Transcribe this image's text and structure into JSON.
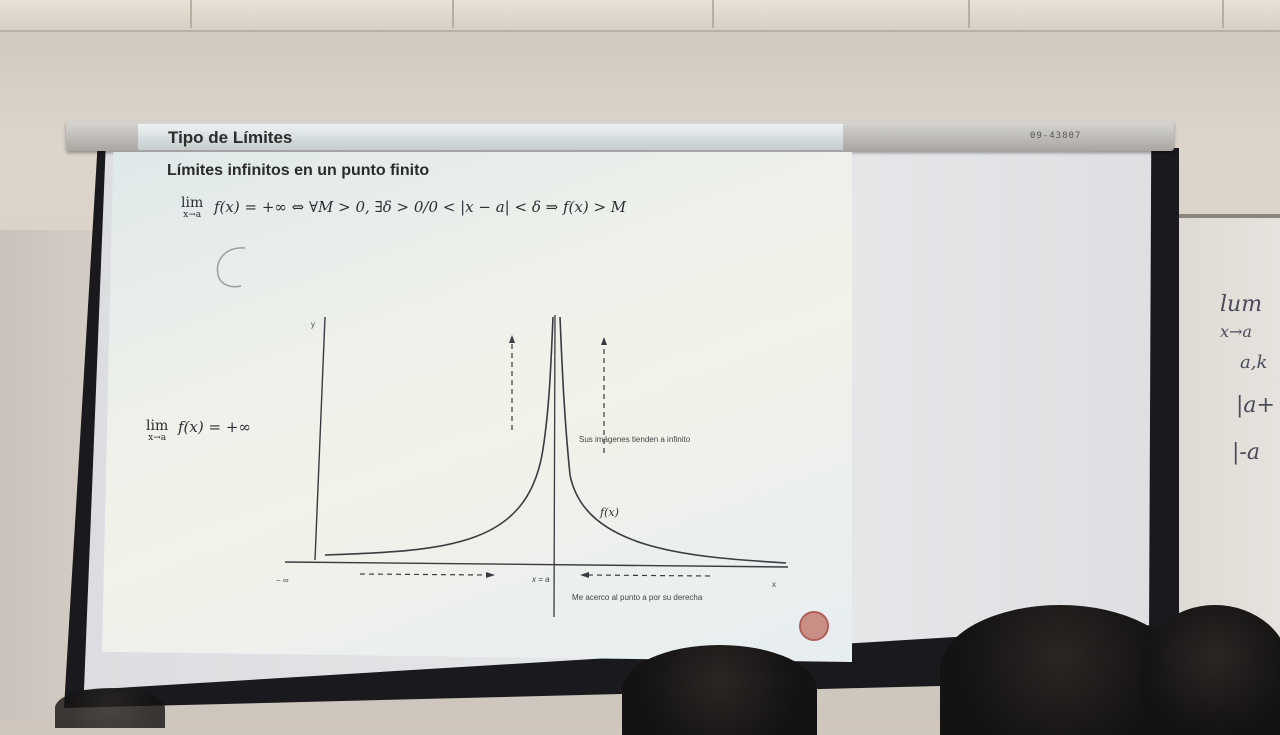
{
  "room": {
    "screen_serial": "09-43807",
    "whiteboard_lines": [
      "lum",
      "x→a",
      "a,k",
      "|a+",
      "|-a"
    ]
  },
  "slide": {
    "title": "Tipo de Límites",
    "subtitle": "Límites infinitos en un punto finito",
    "definition": {
      "lim_word": "lim",
      "lim_sub": "x→a",
      "rest": "f(x) = +∞ ⇔ ∀M > 0, ∃δ > 0/0 < |x − a| < δ ⇒ f(x) > M"
    },
    "side_limit": {
      "lim_word": "lim",
      "lim_sub": "x→a",
      "rest": "f(x) = +∞"
    },
    "graph": {
      "y_axis_label": "y",
      "x_axis_label": "x",
      "x_left_label": "− ∞",
      "x_equals_a": "x = a",
      "function_label": "f(x)",
      "annotation_up": "Sus imágenes tienden a infinito",
      "annotation_right": "Me acerco al punto a por su derecha"
    }
  },
  "colors": {
    "slide_bg": "#eef1ea",
    "record_button": "#c98e86",
    "curve": "#3a3a40"
  }
}
